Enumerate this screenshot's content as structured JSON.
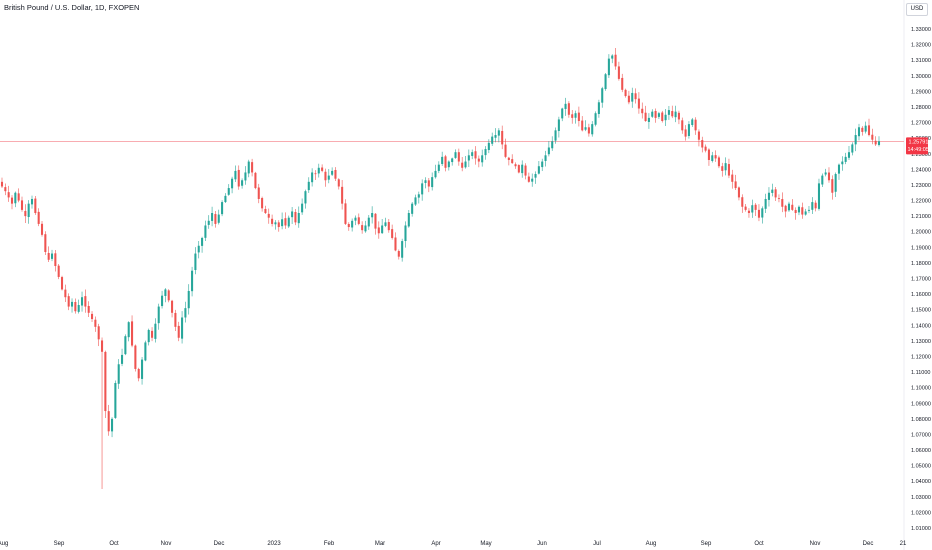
{
  "header": {
    "title": "British Pound / U.S. Dollar, 1D, FXOPEN"
  },
  "currency_button": {
    "label": "USD"
  },
  "colors": {
    "up": "#26a69a",
    "down": "#ef5350",
    "price_line": "#f7a1a6",
    "tag_bg": "#f23645",
    "axis_text": "#131722"
  },
  "price_tag": {
    "price": "1.25791",
    "countdown": "14:49:05"
  },
  "chart_data": {
    "type": "candlestick",
    "title": "British Pound / U.S. Dollar, 1D, FXOPEN",
    "ylim": [
      1.0,
      1.34
    ],
    "y_ticks": [
      "1.33000",
      "1.32000",
      "1.31000",
      "1.30000",
      "1.29000",
      "1.28000",
      "1.27000",
      "1.26000",
      "1.25000",
      "1.24000",
      "1.23000",
      "1.22000",
      "1.21000",
      "1.20000",
      "1.19000",
      "1.18000",
      "1.17000",
      "1.16000",
      "1.15000",
      "1.14000",
      "1.13000",
      "1.12000",
      "1.11000",
      "1.10000",
      "1.09000",
      "1.08000",
      "1.07000",
      "1.06000",
      "1.05000",
      "1.04000",
      "1.03000",
      "1.02000",
      "1.01000"
    ],
    "x_ticks": [
      "Aug",
      "Sep",
      "Oct",
      "Nov",
      "Dec",
      "2023",
      "Feb",
      "Mar",
      "Apr",
      "May",
      "Jun",
      "Jul",
      "Aug",
      "Sep",
      "Oct",
      "Nov",
      "Dec",
      "21"
    ],
    "last_price": 1.25791,
    "closes": [
      1.229,
      1.226,
      1.222,
      1.218,
      1.225,
      1.22,
      1.214,
      1.21,
      1.218,
      1.221,
      1.212,
      1.205,
      1.198,
      1.187,
      1.182,
      1.186,
      1.178,
      1.171,
      1.163,
      1.158,
      1.152,
      1.155,
      1.149,
      1.153,
      1.158,
      1.152,
      1.148,
      1.144,
      1.139,
      1.131,
      1.123,
      1.085,
      1.072,
      1.08,
      1.103,
      1.115,
      1.121,
      1.133,
      1.142,
      1.127,
      1.112,
      1.106,
      1.118,
      1.129,
      1.137,
      1.132,
      1.141,
      1.152,
      1.159,
      1.163,
      1.156,
      1.148,
      1.139,
      1.132,
      1.145,
      1.151,
      1.162,
      1.175,
      1.186,
      1.191,
      1.196,
      1.204,
      1.207,
      1.212,
      1.205,
      1.211,
      1.219,
      1.223,
      1.228,
      1.234,
      1.239,
      1.229,
      1.233,
      1.238,
      1.245,
      1.238,
      1.228,
      1.221,
      1.215,
      1.212,
      1.209,
      1.205,
      1.206,
      1.203,
      1.208,
      1.204,
      1.209,
      1.213,
      1.206,
      1.212,
      1.218,
      1.226,
      1.232,
      1.238,
      1.237,
      1.241,
      1.239,
      1.233,
      1.236,
      1.239,
      1.234,
      1.229,
      1.218,
      1.205,
      1.203,
      1.207,
      1.209,
      1.205,
      1.201,
      1.204,
      1.209,
      1.212,
      1.202,
      1.199,
      1.204,
      1.206,
      1.201,
      1.196,
      1.188,
      1.184,
      1.194,
      1.204,
      1.212,
      1.218,
      1.222,
      1.224,
      1.231,
      1.233,
      1.229,
      1.235,
      1.239,
      1.243,
      1.248,
      1.241,
      1.245,
      1.247,
      1.251,
      1.245,
      1.241,
      1.245,
      1.249,
      1.251,
      1.247,
      1.245,
      1.249,
      1.253,
      1.257,
      1.261,
      1.262,
      1.265,
      1.256,
      1.248,
      1.246,
      1.244,
      1.242,
      1.238,
      1.243,
      1.236,
      1.232,
      1.234,
      1.237,
      1.242,
      1.245,
      1.249,
      1.254,
      1.258,
      1.265,
      1.272,
      1.279,
      1.282,
      1.275,
      1.273,
      1.276,
      1.271,
      1.265,
      1.267,
      1.263,
      1.269,
      1.276,
      1.283,
      1.292,
      1.301,
      1.311,
      1.313,
      1.306,
      1.298,
      1.291,
      1.287,
      1.283,
      1.289,
      1.285,
      1.279,
      1.276,
      1.271,
      1.273,
      1.277,
      1.273,
      1.276,
      1.271,
      1.275,
      1.278,
      1.274,
      1.277,
      1.272,
      1.265,
      1.261,
      1.269,
      1.272,
      1.265,
      1.259,
      1.254,
      1.252,
      1.246,
      1.249,
      1.247,
      1.242,
      1.239,
      1.244,
      1.236,
      1.232,
      1.228,
      1.222,
      1.216,
      1.214,
      1.212,
      1.217,
      1.214,
      1.209,
      1.215,
      1.221,
      1.225,
      1.227,
      1.222,
      1.221,
      1.216,
      1.213,
      1.218,
      1.214,
      1.212,
      1.216,
      1.211,
      1.213,
      1.214,
      1.219,
      1.215,
      1.231,
      1.236,
      1.238,
      1.233,
      1.225,
      1.237,
      1.243,
      1.245,
      1.248,
      1.251,
      1.256,
      1.262,
      1.267,
      1.264,
      1.268,
      1.262,
      1.259,
      1.256,
      1.258
    ]
  }
}
